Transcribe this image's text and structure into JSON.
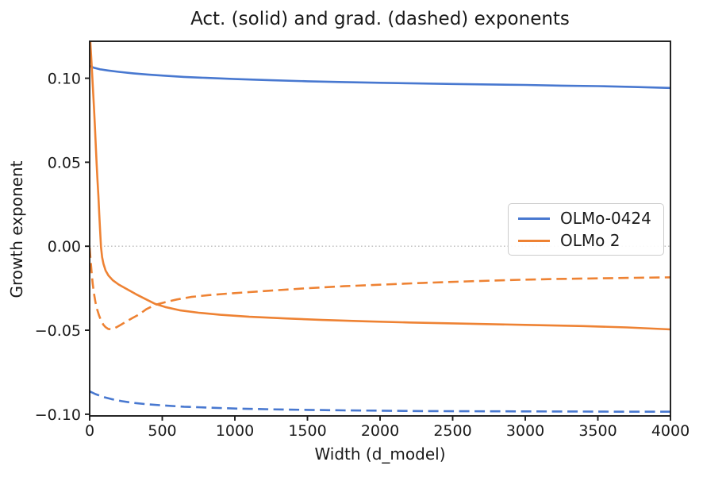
{
  "chart_data": {
    "type": "line",
    "title": "Act. (solid) and grad. (dashed) exponents",
    "xlabel": "Width (d_model)",
    "ylabel": "Growth exponent",
    "xlim": [
      0,
      4000
    ],
    "ylim": [
      -0.101,
      0.122
    ],
    "grid": false,
    "xticks": [
      0,
      500,
      1000,
      1500,
      2000,
      2500,
      3000,
      3500,
      4000
    ],
    "xtick_labels": [
      "0",
      "500",
      "1000",
      "1500",
      "2000",
      "2500",
      "3000",
      "3500",
      "4000"
    ],
    "yticks": [
      0.1,
      0.05,
      0.0,
      -0.05,
      -0.1
    ],
    "ytick_labels": [
      "0.10",
      "0.05",
      "0.00",
      "−0.05",
      "−0.10"
    ],
    "reference_line": {
      "y": 0,
      "style": "dotted",
      "color": "#bcbcbc"
    },
    "axis_color": "#1a1a1a",
    "legend": {
      "position": "center right",
      "entries": [
        0,
        1
      ]
    },
    "series": [
      {
        "name": "OLMo-0424",
        "exponent_type": "activation",
        "line_style": "solid",
        "color": "#4878d0",
        "in_legend": true,
        "points": [
          [
            0,
            0.1073
          ],
          [
            30,
            0.1062
          ],
          [
            70,
            0.1053
          ],
          [
            126,
            0.1046
          ],
          [
            200,
            0.1038
          ],
          [
            300,
            0.1029
          ],
          [
            400,
            0.1022
          ],
          [
            500,
            0.1016
          ],
          [
            650,
            0.1008
          ],
          [
            800,
            0.1002
          ],
          [
            1000,
            0.0995
          ],
          [
            1250,
            0.0988
          ],
          [
            1500,
            0.0982
          ],
          [
            1750,
            0.0977
          ],
          [
            2000,
            0.0973
          ],
          [
            2250,
            0.0969
          ],
          [
            2500,
            0.0966
          ],
          [
            2750,
            0.0963
          ],
          [
            3000,
            0.096
          ],
          [
            3250,
            0.0956
          ],
          [
            3500,
            0.0953
          ],
          [
            3750,
            0.0948
          ],
          [
            4000,
            0.0942
          ]
        ]
      },
      {
        "name": "OLMo 2",
        "exponent_type": "activation",
        "line_style": "solid",
        "color": "#ee8233",
        "in_legend": true,
        "points": [
          [
            0,
            0.129
          ],
          [
            6,
            0.1195
          ],
          [
            12,
            0.1105
          ],
          [
            18,
            0.101
          ],
          [
            24,
            0.0915
          ],
          [
            30,
            0.082
          ],
          [
            36,
            0.0715
          ],
          [
            42,
            0.06
          ],
          [
            48,
            0.049
          ],
          [
            54,
            0.039
          ],
          [
            60,
            0.03
          ],
          [
            66,
            0.019
          ],
          [
            72,
            0.009
          ],
          [
            78,
            -0.0005
          ],
          [
            86,
            -0.0065
          ],
          [
            95,
            -0.0105
          ],
          [
            110,
            -0.0145
          ],
          [
            130,
            -0.0175
          ],
          [
            160,
            -0.0203
          ],
          [
            200,
            -0.0228
          ],
          [
            250,
            -0.0252
          ],
          [
            320,
            -0.0286
          ],
          [
            400,
            -0.0321
          ],
          [
            450,
            -0.0343
          ],
          [
            520,
            -0.0362
          ],
          [
            620,
            -0.0381
          ],
          [
            750,
            -0.0396
          ],
          [
            900,
            -0.0408
          ],
          [
            1100,
            -0.042
          ],
          [
            1350,
            -0.043
          ],
          [
            1600,
            -0.0439
          ],
          [
            1900,
            -0.0447
          ],
          [
            2200,
            -0.0454
          ],
          [
            2600,
            -0.0461
          ],
          [
            3000,
            -0.0468
          ],
          [
            3400,
            -0.0475
          ],
          [
            3700,
            -0.0483
          ],
          [
            4000,
            -0.0495
          ]
        ]
      },
      {
        "name": "OLMo-0424",
        "exponent_type": "gradient",
        "line_style": "dashed",
        "color": "#4878d0",
        "in_legend": false,
        "points": [
          [
            0,
            -0.0864
          ],
          [
            40,
            -0.088
          ],
          [
            90,
            -0.0896
          ],
          [
            150,
            -0.091
          ],
          [
            220,
            -0.0922
          ],
          [
            300,
            -0.0932
          ],
          [
            400,
            -0.0941
          ],
          [
            514,
            -0.0948
          ],
          [
            650,
            -0.0955
          ],
          [
            800,
            -0.096
          ],
          [
            1000,
            -0.0966
          ],
          [
            1250,
            -0.0971
          ],
          [
            1500,
            -0.0974
          ],
          [
            1750,
            -0.0977
          ],
          [
            2000,
            -0.0979
          ],
          [
            2300,
            -0.0981
          ],
          [
            2600,
            -0.0982
          ],
          [
            3000,
            -0.0983
          ],
          [
            3400,
            -0.0984
          ],
          [
            3700,
            -0.0985
          ],
          [
            4000,
            -0.0985
          ]
        ]
      },
      {
        "name": "OLMo 2",
        "exponent_type": "gradient",
        "line_style": "dashed",
        "color": "#ee8233",
        "in_legend": false,
        "points": [
          [
            0,
            -0.0008
          ],
          [
            6,
            -0.0078
          ],
          [
            13,
            -0.0152
          ],
          [
            21,
            -0.0222
          ],
          [
            30,
            -0.0283
          ],
          [
            40,
            -0.0333
          ],
          [
            52,
            -0.0377
          ],
          [
            65,
            -0.0413
          ],
          [
            80,
            -0.0445
          ],
          [
            95,
            -0.0468
          ],
          [
            110,
            -0.0482
          ],
          [
            128,
            -0.0492
          ],
          [
            145,
            -0.0494
          ],
          [
            165,
            -0.049
          ],
          [
            190,
            -0.048
          ],
          [
            220,
            -0.0465
          ],
          [
            255,
            -0.0447
          ],
          [
            295,
            -0.0427
          ],
          [
            340,
            -0.0406
          ],
          [
            390,
            -0.0375
          ],
          [
            450,
            -0.0349
          ],
          [
            520,
            -0.0333
          ],
          [
            600,
            -0.0317
          ],
          [
            700,
            -0.0302
          ],
          [
            820,
            -0.0291
          ],
          [
            950,
            -0.0282
          ],
          [
            1100,
            -0.0273
          ],
          [
            1300,
            -0.0261
          ],
          [
            1500,
            -0.025
          ],
          [
            1750,
            -0.0238
          ],
          [
            2000,
            -0.0229
          ],
          [
            2300,
            -0.0218
          ],
          [
            2600,
            -0.0209
          ],
          [
            2900,
            -0.0201
          ],
          [
            3200,
            -0.0195
          ],
          [
            3500,
            -0.0191
          ],
          [
            3750,
            -0.0188
          ],
          [
            4000,
            -0.0185
          ]
        ]
      }
    ]
  }
}
